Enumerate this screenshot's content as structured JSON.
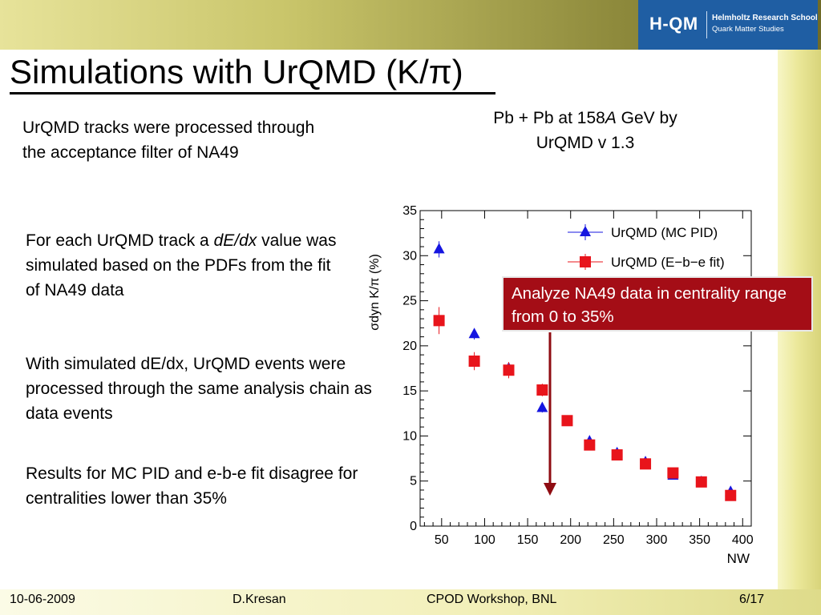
{
  "header": {
    "logo_main": "H-QM",
    "logo_line1": "Helmholtz Research School",
    "logo_line2": "Quark Matter Studies"
  },
  "slide": {
    "title": "Simulations with UrQMD (K/π)",
    "bullets": [
      "UrQMD tracks were processed through the acceptance filter of NA49",
      "For each UrQMD track a dE/dx value was simulated based on the PDFs from the fit of NA49 data",
      "With simulated dE/dx, UrQMD events were processed through the same analysis chain as data events",
      "Results for MC PID and e-b-e fit disagree for centralities lower than 35%"
    ],
    "bullet2_parts": {
      "before": "For each UrQMD track a ",
      "italic": "dE/dx",
      "after": " value was simulated based on the PDFs from the fit of NA49 data"
    },
    "plot_caption_line1_before": "Pb + Pb at 158",
    "plot_caption_line1_italic": "A",
    "plot_caption_line1_after": " GeV by",
    "plot_caption_line2": "UrQMD v 1.3",
    "callout": "Analyze NA49 data in centrality range from 0 to 35%"
  },
  "footer": {
    "date": "10-06-2009",
    "author": "D.Kresan",
    "event": "CPOD Workshop, BNL",
    "page": "6/17"
  },
  "colors": {
    "accent_blue": "#1f5ea3",
    "callout_red": "#a40d16",
    "series_blue": "#1515e0",
    "series_red": "#e8141b",
    "arrow": "#8f0c12"
  },
  "chart_data": {
    "type": "scatter",
    "xlabel": "N_W",
    "ylabel": "σ_dyn K/π (%)",
    "xlim": [
      25,
      410
    ],
    "ylim": [
      0,
      35
    ],
    "x_ticks": [
      50,
      100,
      150,
      200,
      250,
      300,
      350,
      400
    ],
    "y_ticks": [
      0,
      5,
      10,
      15,
      20,
      25,
      30,
      35
    ],
    "grid": false,
    "legend": "top-right",
    "series": [
      {
        "name": "UrQMD (MC PID)",
        "marker": "triangle",
        "points": [
          {
            "x": 47,
            "y": 30.7,
            "err": 0.9
          },
          {
            "x": 88,
            "y": 21.3,
            "err": 0.6
          },
          {
            "x": 128,
            "y": 17.5,
            "err": 0.5
          },
          {
            "x": 167,
            "y": 13.1,
            "err": 0.5
          },
          {
            "x": 196,
            "y": 11.6,
            "err": 0.4
          },
          {
            "x": 222,
            "y": 9.4,
            "err": 0.4
          },
          {
            "x": 254,
            "y": 8.1,
            "err": 0.4
          },
          {
            "x": 287,
            "y": 7.1,
            "err": 0.4
          },
          {
            "x": 319,
            "y": 5.6,
            "err": 0.4
          },
          {
            "x": 352,
            "y": 4.9,
            "err": 0.4
          },
          {
            "x": 386,
            "y": 3.8,
            "err": 0.4
          }
        ]
      },
      {
        "name": "UrQMD (E−b−e fit)",
        "marker": "square",
        "points": [
          {
            "x": 47,
            "y": 22.8,
            "err": 1.5
          },
          {
            "x": 88,
            "y": 18.3,
            "err": 1.0
          },
          {
            "x": 128,
            "y": 17.3,
            "err": 0.9
          },
          {
            "x": 167,
            "y": 15.1,
            "err": 0.7
          },
          {
            "x": 196,
            "y": 11.7,
            "err": 0.5
          },
          {
            "x": 222,
            "y": 9.0,
            "err": 0.5
          },
          {
            "x": 254,
            "y": 7.9,
            "err": 0.5
          },
          {
            "x": 287,
            "y": 6.9,
            "err": 0.5
          },
          {
            "x": 319,
            "y": 5.9,
            "err": 0.5
          },
          {
            "x": 352,
            "y": 4.9,
            "err": 0.4
          },
          {
            "x": 386,
            "y": 3.4,
            "err": 0.4
          }
        ]
      }
    ],
    "marker_x": 176
  }
}
